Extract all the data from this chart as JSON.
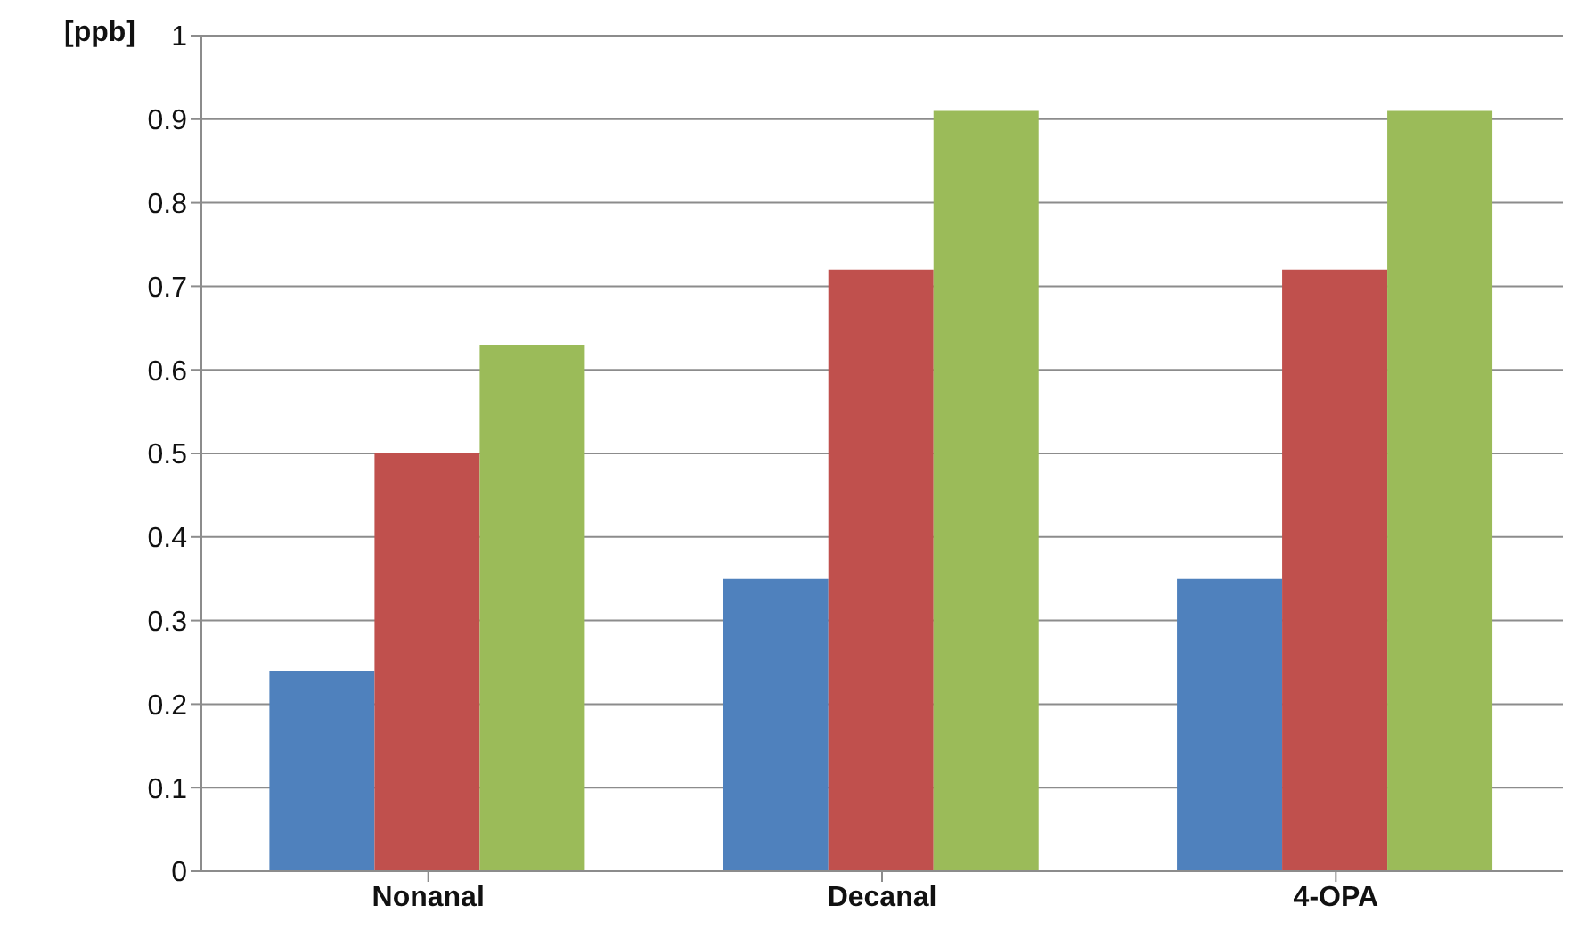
{
  "chart_data": {
    "type": "bar",
    "ylabel": "[ppb]",
    "categories": [
      "Nonanal",
      "Decanal",
      "4-OPA"
    ],
    "series": [
      {
        "color": "#4f81bd",
        "values": [
          0.24,
          0.35,
          0.35
        ]
      },
      {
        "color": "#c0504d",
        "values": [
          0.5,
          0.72,
          0.72
        ]
      },
      {
        "color": "#9bbb59",
        "values": [
          0.63,
          0.91,
          0.91
        ]
      }
    ],
    "ylim": [
      0,
      1
    ],
    "yticks": [
      0,
      0.1,
      0.2,
      0.3,
      0.4,
      0.5,
      0.6,
      0.7,
      0.8,
      0.9,
      1
    ],
    "grid": "y"
  }
}
